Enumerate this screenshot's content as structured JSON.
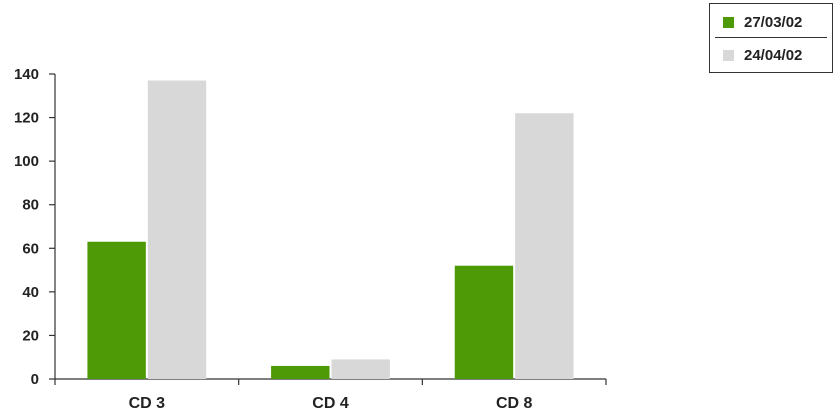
{
  "chart_data": {
    "type": "bar",
    "categories": [
      "CD 3",
      "CD 4",
      "CD 8"
    ],
    "series": [
      {
        "name": "27/03/02",
        "values": [
          63,
          6,
          52
        ],
        "color": "#4e9a06"
      },
      {
        "name": "24/04/02",
        "values": [
          137,
          9,
          122
        ],
        "color": "#d8d8d8"
      }
    ],
    "ylim": [
      0,
      140
    ],
    "yticks": [
      0,
      20,
      40,
      60,
      80,
      100,
      120,
      140
    ],
    "grid": false,
    "legend_position": "top-right"
  }
}
